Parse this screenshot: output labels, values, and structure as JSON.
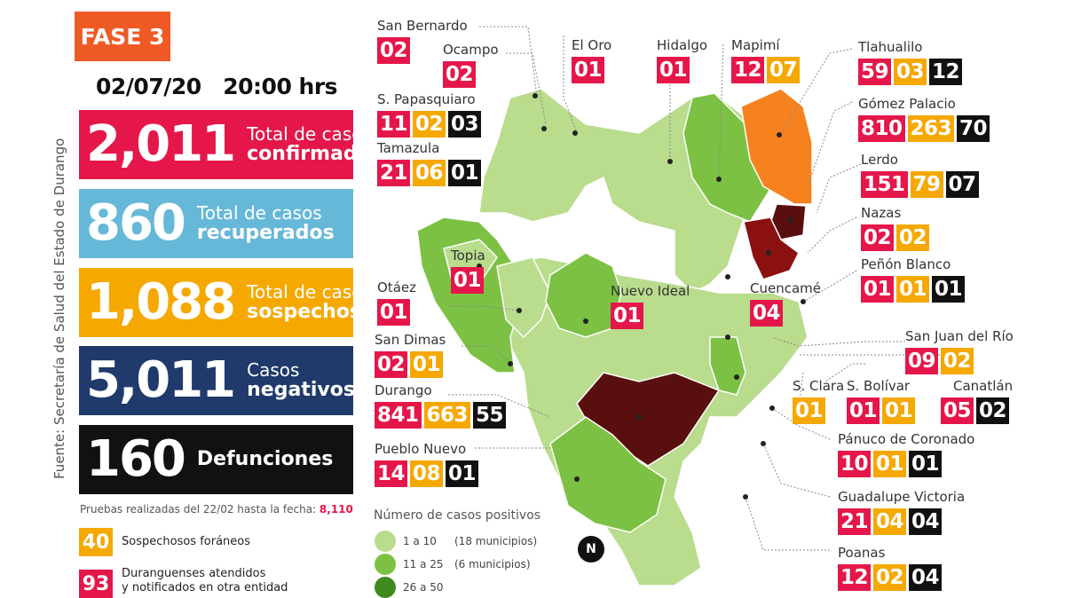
{
  "header": {
    "phase": "FASE 3",
    "date": "02/07/20",
    "time": "20:00 hrs"
  },
  "stats": {
    "confirmed": {
      "value": "2,011",
      "line1": "Total de casos",
      "line2": "confirmados",
      "color": "#e5174a"
    },
    "recovered": {
      "value": "860",
      "line1": "Total de casos",
      "line2": "recuperados",
      "color": "#66b8d8"
    },
    "suspected": {
      "value": "1,088",
      "line1": "Total de casos",
      "line2": "sospechosos",
      "color": "#f5a800"
    },
    "negative": {
      "value": "5,011",
      "line1": "Casos",
      "line2": "negativos",
      "color": "#1f3a6b"
    },
    "deaths": {
      "value": "160",
      "line1": "Defunciones",
      "color": "#111111"
    }
  },
  "source": "Fuente: Secretaría de Salud del Estado de Durango",
  "tests": {
    "text": "Pruebas realizadas del 22/02 hasta la fecha:",
    "value": "8,110"
  },
  "notes": [
    {
      "value": "40",
      "text": "Sospechosos foráneos",
      "color": "#f5a800"
    },
    {
      "value": "93",
      "line1": "Duranguenses atendidos",
      "line2": "y notificados en otra entidad",
      "color": "#e5174a"
    }
  ],
  "municipalities": {
    "san_bernardo": {
      "name": "San Bernardo",
      "confirmed": "02"
    },
    "ocampo": {
      "name": "Ocampo",
      "confirmed": "02"
    },
    "el_oro": {
      "name": "El Oro",
      "confirmed": "01"
    },
    "hidalgo": {
      "name": "Hidalgo",
      "confirmed": "01"
    },
    "mapimi": {
      "name": "Mapimí",
      "confirmed": "12",
      "suspected": "07"
    },
    "tlahualilo": {
      "name": "Tlahualilo",
      "confirmed": "59",
      "suspected": "03",
      "deaths": "12"
    },
    "s_papasquiaro": {
      "name": "S. Papasquiaro",
      "confirmed": "11",
      "suspected": "02",
      "deaths": "03"
    },
    "tamazula": {
      "name": "Tamazula",
      "confirmed": "21",
      "suspected": "06",
      "deaths": "01"
    },
    "gomez_palacio": {
      "name": "Gómez Palacio",
      "confirmed": "810",
      "suspected": "263",
      "deaths": "70"
    },
    "lerdo": {
      "name": "Lerdo",
      "confirmed": "151",
      "suspected": "79",
      "deaths": "07"
    },
    "nazas": {
      "name": "Nazas",
      "confirmed": "02",
      "suspected": "02"
    },
    "topia": {
      "name": "Topia",
      "confirmed": "01"
    },
    "penon_blanco": {
      "name": "Peñón Blanco",
      "confirmed": "01",
      "suspected": "01",
      "deaths": "01"
    },
    "otaez": {
      "name": "Otáez",
      "confirmed": "01"
    },
    "nuevo_ideal": {
      "name": "Nuevo Ideal",
      "confirmed": "01"
    },
    "cuencame": {
      "name": "Cuencamé",
      "confirmed": "04"
    },
    "san_juan_del_rio": {
      "name": "San Juan del Río",
      "confirmed": "09",
      "suspected": "02"
    },
    "san_dimas": {
      "name": "San Dimas",
      "confirmed": "02",
      "suspected": "01"
    },
    "durango": {
      "name": "Durango",
      "confirmed": "841",
      "suspected": "663",
      "deaths": "55"
    },
    "s_clara": {
      "name": "S. Clara",
      "suspected": "01"
    },
    "s_bolivar": {
      "name": "S. Bolívar",
      "confirmed": "01",
      "suspected": "01"
    },
    "canatlan": {
      "name": "Canatlán",
      "confirmed": "05",
      "deaths": "02"
    },
    "pueblo_nuevo": {
      "name": "Pueblo Nuevo",
      "confirmed": "14",
      "suspected": "08",
      "deaths": "01"
    },
    "panuco": {
      "name": "Pánuco de Coronado",
      "confirmed": "10",
      "suspected": "01",
      "deaths": "01"
    },
    "guadalupe_victoria": {
      "name": "Guadalupe Victoria",
      "confirmed": "21",
      "suspected": "04",
      "deaths": "04"
    },
    "poanas": {
      "name": "Poanas",
      "confirmed": "12",
      "suspected": "02",
      "deaths": "04"
    }
  },
  "legend": {
    "title": "Número de casos positivos",
    "items": [
      {
        "range": "1 a 10",
        "count": "(18 municipios)",
        "color": "#b9dc8d"
      },
      {
        "range": "11 a 25",
        "count": "(6 municipios)",
        "color": "#7cc143"
      },
      {
        "range": "26 a 50",
        "color": "#3f8a1f"
      }
    ]
  },
  "north": "N",
  "map_colors": {
    "light": "#b9dc8d",
    "medium": "#7cc143",
    "orange": "#f5821f",
    "dark": "#5a0f0f",
    "darkred": "#8b1010"
  }
}
